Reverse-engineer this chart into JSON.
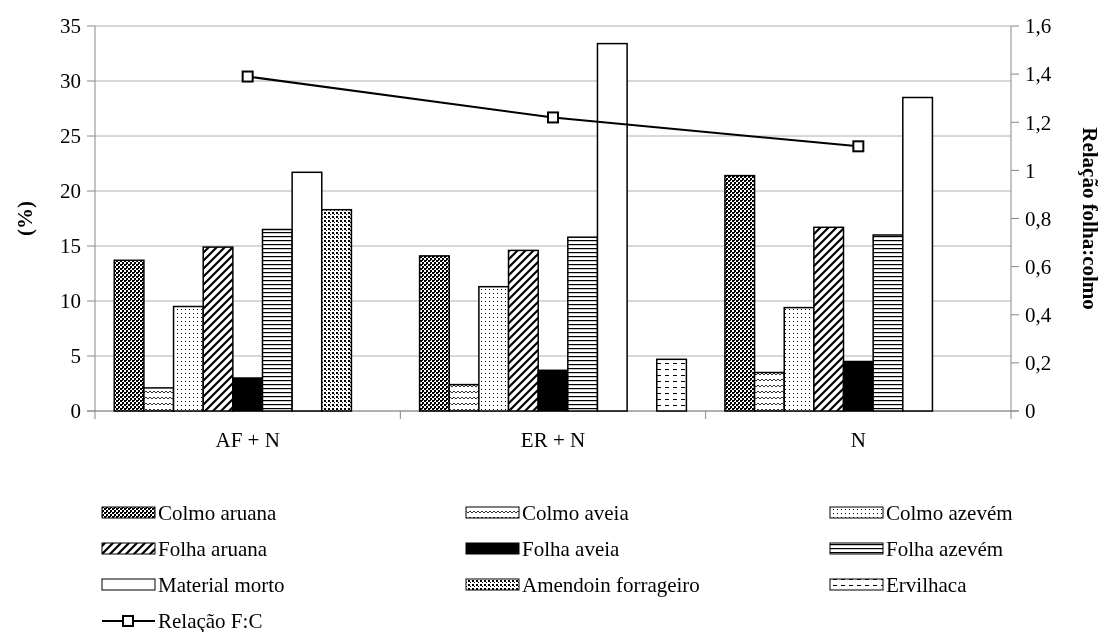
{
  "chart_data": {
    "type": "bar",
    "categories": [
      "AF + N",
      "ER + N",
      "N"
    ],
    "ylabel": "(%)",
    "y2label": "Relação folha:colmo",
    "ylim": [
      0,
      35
    ],
    "yticks": [
      0,
      5,
      10,
      15,
      20,
      25,
      30,
      35
    ],
    "y2lim": [
      0,
      1.6
    ],
    "y2ticks": [
      0,
      {
        "value": 0.2,
        "label": "0,2"
      },
      {
        "value": 0.4,
        "label": "0,4"
      },
      {
        "value": 0.6,
        "label": "0,6"
      },
      {
        "value": 0.8,
        "label": "0,8"
      },
      1,
      {
        "value": 1.2,
        "label": "1,2"
      },
      {
        "value": 1.4,
        "label": "1,4"
      },
      {
        "value": 1.6,
        "label": "1,6"
      }
    ],
    "grid": "y",
    "legend": "bottom",
    "series": [
      {
        "name": "Colmo aruana",
        "color": "#000000",
        "values": [
          13.7,
          14.1,
          21.4
        ]
      },
      {
        "name": "Colmo aveia",
        "color": "#000000",
        "values": [
          2.1,
          2.4,
          3.5
        ]
      },
      {
        "name": "Colmo azevém",
        "color": "#000000",
        "values": [
          9.5,
          11.3,
          9.4
        ]
      },
      {
        "name": "Folha aruana",
        "color": "#000000",
        "values": [
          14.9,
          14.6,
          16.7
        ]
      },
      {
        "name": "Folha aveia",
        "color": "#000000",
        "values": [
          3.0,
          3.7,
          4.5
        ]
      },
      {
        "name": "Folha azevém",
        "color": "#000000",
        "values": [
          16.5,
          15.8,
          16.0
        ]
      },
      {
        "name": "Material morto",
        "color": "#ffffff",
        "values": [
          21.7,
          33.4,
          28.5
        ]
      },
      {
        "name": "Amendoin forrageiro",
        "color": "#000000",
        "values": [
          18.3,
          null,
          null
        ]
      },
      {
        "name": "Ervilhaca",
        "color": "#000000",
        "values": [
          null,
          4.7,
          null
        ]
      },
      {
        "name": "Relação F:C",
        "type": "line",
        "axis": "y2",
        "color": "#000000",
        "marker": "square",
        "values": [
          1.39,
          1.22,
          1.1
        ]
      }
    ]
  }
}
